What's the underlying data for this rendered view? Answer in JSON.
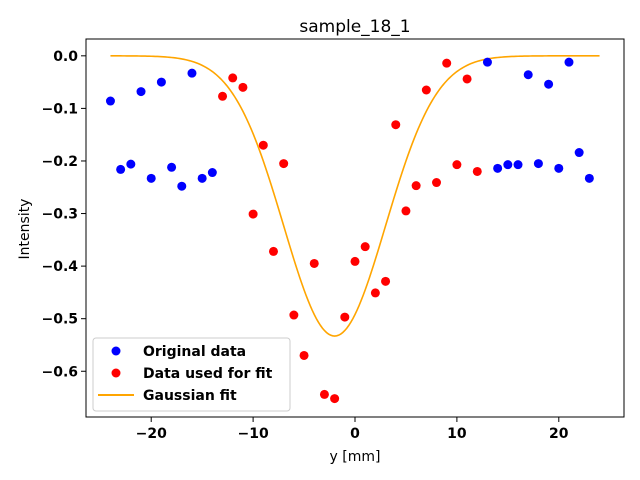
{
  "chart_data": {
    "type": "scatter",
    "title": "sample_18_1",
    "xlabel": "y [mm]",
    "ylabel": "Intensity",
    "xlim": [
      -26.4,
      26.4
    ],
    "ylim": [
      -0.687,
      0.032
    ],
    "xticks": [
      -20,
      -10,
      0,
      10,
      20
    ],
    "xtick_labels": [
      "−20",
      "−10",
      "0",
      "10",
      "20"
    ],
    "yticks": [
      0.0,
      -0.1,
      -0.2,
      -0.3,
      -0.4,
      -0.5,
      -0.6
    ],
    "ytick_labels": [
      "0.0",
      "−0.1",
      "−0.2",
      "−0.3",
      "−0.4",
      "−0.5",
      "−0.6"
    ],
    "grid": false,
    "legend_position": "lower-left",
    "series": [
      {
        "name": "Original data",
        "kind": "scatter",
        "color": "#0000ff",
        "points": [
          [
            -24,
            -0.086
          ],
          [
            -23,
            -0.216
          ],
          [
            -22,
            -0.206
          ],
          [
            -21,
            -0.068
          ],
          [
            -20,
            -0.233
          ],
          [
            -19,
            -0.05
          ],
          [
            -18,
            -0.212
          ],
          [
            -17,
            -0.248
          ],
          [
            -16,
            -0.033
          ],
          [
            -15,
            -0.233
          ],
          [
            -14,
            -0.222
          ],
          [
            13,
            -0.012
          ],
          [
            14,
            -0.214
          ],
          [
            15,
            -0.207
          ],
          [
            16,
            -0.207
          ],
          [
            17,
            -0.036
          ],
          [
            18,
            -0.205
          ],
          [
            19,
            -0.054
          ],
          [
            20,
            -0.214
          ],
          [
            21,
            -0.012
          ],
          [
            22,
            -0.184
          ],
          [
            23,
            -0.233
          ]
        ]
      },
      {
        "name": "Data used for fit",
        "kind": "scatter",
        "color": "#ff0000",
        "points": [
          [
            -13,
            -0.077
          ],
          [
            -12,
            -0.042
          ],
          [
            -11,
            -0.06
          ],
          [
            -10,
            -0.301
          ],
          [
            -9,
            -0.17
          ],
          [
            -8,
            -0.372
          ],
          [
            -7,
            -0.205
          ],
          [
            -6,
            -0.493
          ],
          [
            -5,
            -0.57
          ],
          [
            -4,
            -0.395
          ],
          [
            -3,
            -0.644
          ],
          [
            -2,
            -0.652
          ],
          [
            -1,
            -0.497
          ],
          [
            0,
            -0.391
          ],
          [
            1,
            -0.363
          ],
          [
            2,
            -0.451
          ],
          [
            3,
            -0.429
          ],
          [
            4,
            -0.131
          ],
          [
            5,
            -0.295
          ],
          [
            6,
            -0.247
          ],
          [
            7,
            -0.065
          ],
          [
            8,
            -0.241
          ],
          [
            9,
            -0.014
          ],
          [
            10,
            -0.207
          ],
          [
            11,
            -0.044
          ],
          [
            12,
            -0.22
          ]
        ]
      },
      {
        "name": "Gaussian fit",
        "kind": "line",
        "color": "#ffa500",
        "amplitude": -0.533,
        "center": -2.0,
        "sigma": 5.0,
        "offset": 0.0,
        "x_range": [
          -24,
          24
        ]
      }
    ]
  }
}
